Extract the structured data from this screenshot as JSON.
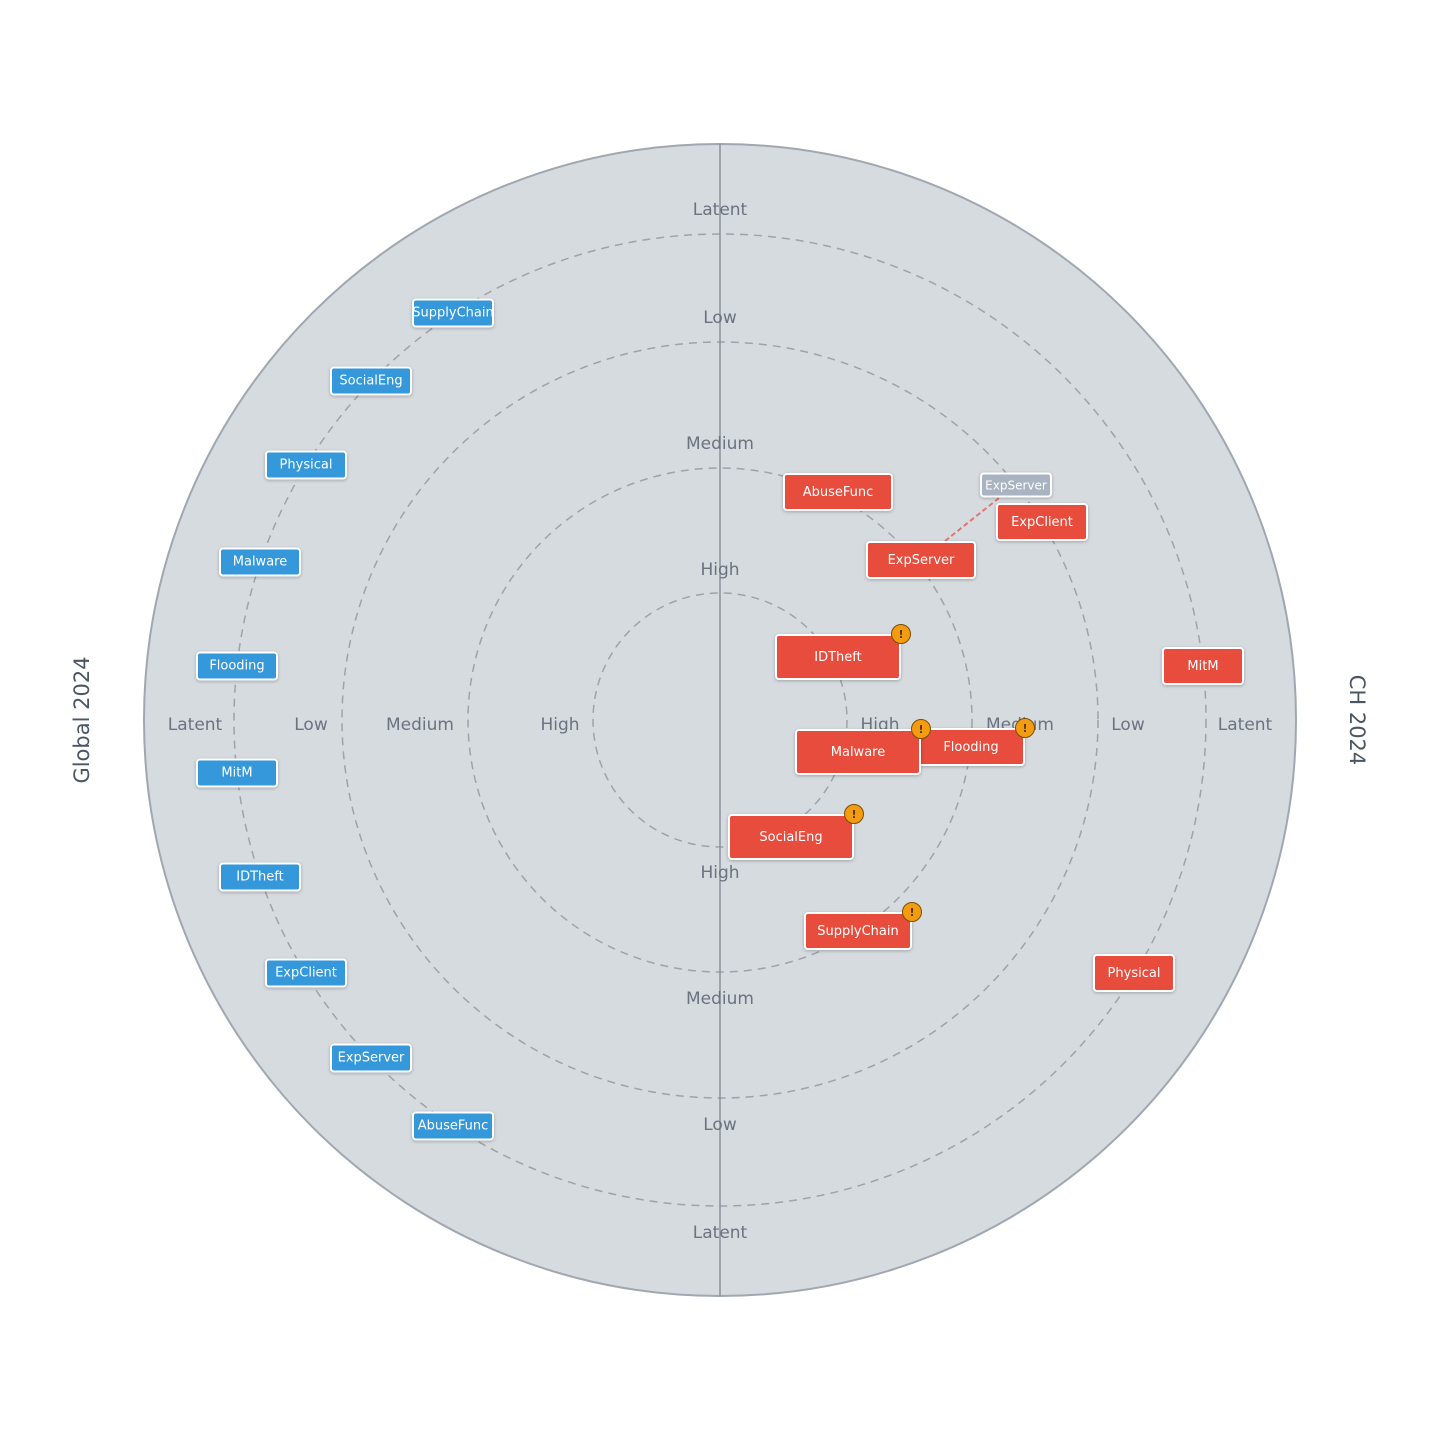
{
  "titles": {
    "left": "Global 2024",
    "right": "CH 2024"
  },
  "rings": {
    "high": "High",
    "medium": "Medium",
    "low": "Low",
    "latent": "Latent"
  },
  "colors": {
    "background_disc": "#d6dbe0",
    "global_tag": "#3498db",
    "ch_tag": "#e74c3c",
    "previous_tag": "#a9b3c1",
    "warning_badge": "#f39c12",
    "movement_line": "#e74c3c"
  },
  "warning_symbol": "!",
  "global_items": [
    {
      "label": "SupplyChain"
    },
    {
      "label": "SocialEng"
    },
    {
      "label": "Physical"
    },
    {
      "label": "Malware"
    },
    {
      "label": "Flooding"
    },
    {
      "label": "MitM"
    },
    {
      "label": "IDTheft"
    },
    {
      "label": "ExpClient"
    },
    {
      "label": "ExpServer"
    },
    {
      "label": "AbuseFunc"
    }
  ],
  "ch_items": [
    {
      "label": "AbuseFunc",
      "warning": false
    },
    {
      "label": "ExpClient",
      "warning": false
    },
    {
      "label": "ExpServer",
      "warning": false
    },
    {
      "label": "IDTheft",
      "warning": true
    },
    {
      "label": "MitM",
      "warning": false
    },
    {
      "label": "Malware",
      "warning": true
    },
    {
      "label": "Flooding",
      "warning": true
    },
    {
      "label": "SocialEng",
      "warning": true
    },
    {
      "label": "SupplyChain",
      "warning": true
    },
    {
      "label": "Physical",
      "warning": false
    }
  ],
  "previous_position": {
    "label": "ExpServer"
  }
}
